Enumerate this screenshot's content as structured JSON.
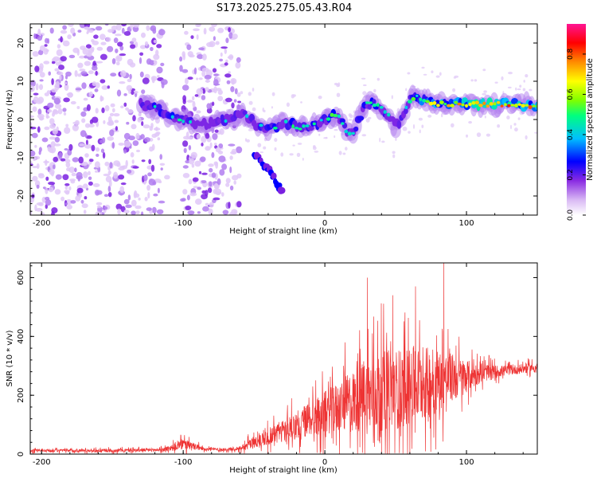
{
  "title": "S173.2025.275.05.43.R04",
  "chart_data": [
    {
      "type": "heatmap",
      "title": "S173.2025.275.05.43.R04",
      "xlabel": "Height of straight line (km)",
      "ylabel": "Frequency (Hz)",
      "xlim": [
        -208,
        150
      ],
      "ylim": [
        -25,
        25
      ],
      "xticks": [
        -200,
        -100,
        0,
        100
      ],
      "yticks": [
        -20,
        -10,
        0,
        10,
        20
      ],
      "ridge": {
        "x": [
          -130,
          -120,
          -110,
          -100,
          -90,
          -80,
          -70,
          -60,
          -55,
          -50,
          -45,
          -40,
          -35,
          -30,
          -25,
          -20,
          -15,
          -10,
          -5,
          0,
          5,
          10,
          15,
          20,
          25,
          30,
          35,
          40,
          45,
          50,
          55,
          60,
          65,
          70,
          80,
          90,
          100,
          110,
          120,
          130,
          140,
          150
        ],
        "freq": [
          4,
          3,
          1,
          0,
          -1,
          -1,
          0,
          1,
          1,
          -1,
          -2,
          -2,
          -2,
          -1,
          -1,
          -2,
          -2,
          -2,
          -1,
          0,
          1,
          1,
          -3,
          -4,
          1,
          4,
          4,
          3,
          1,
          -2,
          1,
          5,
          6,
          5,
          4,
          4,
          4,
          4,
          4,
          4,
          4,
          3
        ],
        "amplitude": [
          0.4,
          0.45,
          0.5,
          0.45,
          0.35,
          0.35,
          0.4,
          0.4,
          0.45,
          0.4,
          0.4,
          0.45,
          0.45,
          0.4,
          0.45,
          0.5,
          0.45,
          0.45,
          0.45,
          0.45,
          0.5,
          0.45,
          0.45,
          0.4,
          0.45,
          0.5,
          0.55,
          0.45,
          0.4,
          0.3,
          0.4,
          0.45,
          0.55,
          0.65,
          0.7,
          0.75,
          0.8,
          0.85,
          0.85,
          0.85,
          0.8,
          0.7
        ]
      },
      "branch": {
        "x": [
          -50,
          -45,
          -40,
          -35,
          -30
        ],
        "freq": [
          -9,
          -11,
          -13,
          -16,
          -19
        ]
      },
      "noise_region_x": [
        -208,
        -60
      ],
      "colorbar": {
        "label": "Normalized spectral amplitude",
        "range": [
          0,
          0.95
        ],
        "ticks": [
          0.0,
          0.2,
          0.4,
          0.6,
          0.8
        ],
        "tick_labels": [
          "0.0",
          "0.2",
          "0.4",
          "0.6",
          "0.8"
        ],
        "colors": [
          "#ffffff",
          "#d8b8f4",
          "#8a2be2",
          "#0000ff",
          "#00bfff",
          "#00ff7f",
          "#7fff00",
          "#ffff00",
          "#ff8c00",
          "#ff0000",
          "#ff1493"
        ]
      }
    },
    {
      "type": "line",
      "xlabel": "Height of straight line (km)",
      "ylabel": "SNR (10 * v/v)",
      "xlim": [
        -208,
        150
      ],
      "ylim": [
        0,
        650
      ],
      "xticks": [
        -200,
        -100,
        0,
        100
      ],
      "yticks": [
        0,
        200,
        400,
        600
      ],
      "series": [
        {
          "name": "SNR",
          "color": "#ee3333",
          "envelope_x": [
            -208,
            -150,
            -115,
            -105,
            -100,
            -95,
            -85,
            -70,
            -60,
            -50,
            -40,
            -30,
            -20,
            -10,
            0,
            10,
            20,
            30,
            40,
            50,
            60,
            70,
            80,
            90,
            100,
            110,
            120,
            130,
            140,
            150
          ],
          "baseline": [
            12,
            12,
            15,
            25,
            35,
            28,
            18,
            15,
            20,
            40,
            60,
            80,
            100,
            120,
            140,
            160,
            180,
            200,
            215,
            220,
            230,
            240,
            250,
            260,
            265,
            275,
            280,
            285,
            290,
            295
          ],
          "spread": [
            8,
            10,
            10,
            25,
            35,
            25,
            10,
            8,
            15,
            40,
            55,
            70,
            90,
            110,
            130,
            160,
            200,
            240,
            250,
            250,
            240,
            230,
            200,
            150,
            100,
            60,
            40,
            30,
            30,
            28
          ],
          "peaks": [
            {
              "x": 30,
              "y": 600
            },
            {
              "x": 84,
              "y": 650
            },
            {
              "x": 64,
              "y": 570
            },
            {
              "x": 48,
              "y": 540
            }
          ]
        }
      ]
    }
  ]
}
